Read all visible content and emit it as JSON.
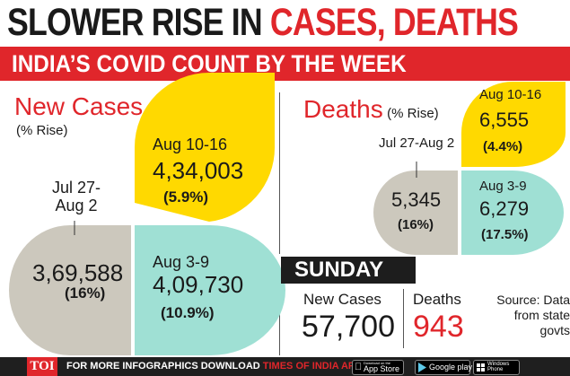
{
  "header": {
    "title_part1": "SLOWER RISE IN ",
    "title_part2": "CASES, DEATHS",
    "subtitle": "INDIA’S COVID COUNT BY THE WEEK"
  },
  "new_cases": {
    "title": "New Cases",
    "subtitle": "(% Rise)"
  },
  "deaths": {
    "title": "Deaths",
    "subtitle": "(% Rise)"
  },
  "chart_data": [
    {
      "type": "table",
      "title": "New Cases",
      "subtitle": "(% Rise)",
      "weeks": [
        {
          "label_line1": "Jul 27-",
          "label_line2": "Aug 2",
          "value": "3,69,588",
          "rise": "(16%)",
          "rise_pct": 16,
          "color": "#ccc8bd"
        },
        {
          "label_line1": "Aug 3-9",
          "label_line2": "",
          "value": "4,09,730",
          "rise": "(10.9%)",
          "rise_pct": 10.9,
          "color": "#9fe0d4"
        },
        {
          "label_line1": "Aug 10-16",
          "label_line2": "",
          "value": "4,34,003",
          "rise": "(5.9%)",
          "rise_pct": 5.9,
          "color": "#ffd900"
        }
      ]
    },
    {
      "type": "table",
      "title": "Deaths",
      "subtitle": "(% Rise)",
      "weeks": [
        {
          "label_line1": "Jul 27-Aug 2",
          "label_line2": "",
          "value": "5,345",
          "rise": "(16%)",
          "rise_pct": 16,
          "color": "#ccc8bd"
        },
        {
          "label_line1": "Aug 3-9",
          "label_line2": "",
          "value": "6,279",
          "rise": "(17.5%)",
          "rise_pct": 17.5,
          "color": "#9fe0d4"
        },
        {
          "label_line1": "Aug 10-16",
          "label_line2": "",
          "value": "6,555",
          "rise": "(4.4%)",
          "rise_pct": 4.4,
          "color": "#ffd900"
        }
      ]
    }
  ],
  "sunday": {
    "label": "SUNDAY",
    "new_cases_label": "New Cases",
    "new_cases_value": "57,700",
    "deaths_label": "Deaths",
    "deaths_value": "943",
    "source_line1": "Source: Data",
    "source_line2": "from state",
    "source_line3": "govts"
  },
  "footer": {
    "toi": "TOI",
    "text1": "FOR MORE  INFOGRAPHICS DOWNLOAD ",
    "text2": "TIMES OF INDIA  APP",
    "appstore_small": "Download on the",
    "appstore": "App Store",
    "googleplay": "Google play",
    "windows_small": "Windows",
    "windows": "Phone"
  },
  "colors": {
    "red": "#e0262b",
    "yellow": "#ffd900",
    "teal": "#9fe0d4",
    "gray": "#ccc8bd"
  }
}
